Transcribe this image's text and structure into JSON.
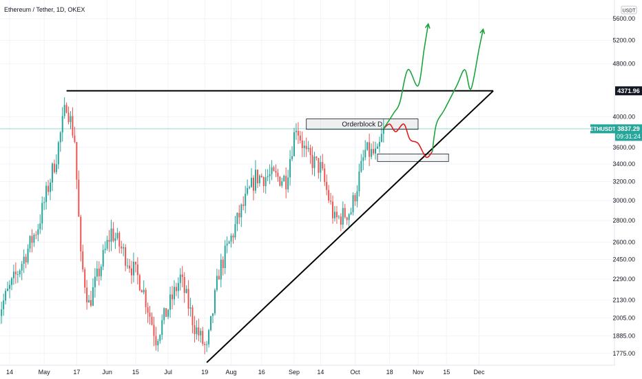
{
  "header": {
    "title": "Ethereum / Tether, 1D, OKEX"
  },
  "price_scale": {
    "currency": "USDT",
    "tick_labels": [
      "5600.00",
      "5200.00",
      "4800.00",
      "4000.00",
      "3600.00",
      "3400.00",
      "3200.00",
      "3000.00",
      "2800.00",
      "2600.00",
      "2450.00",
      "2290.00",
      "2130.00",
      "2005.00",
      "1885.00",
      "1775.00"
    ]
  },
  "time_scale": {
    "tick_labels": [
      "14",
      "May",
      "17",
      "Jun",
      "15",
      "Jul",
      "19",
      "Aug",
      "16",
      "Sep",
      "14",
      "Oct",
      "18",
      "Nov",
      "15",
      "Dec"
    ]
  },
  "price_badges": {
    "resistance": "4371.96",
    "symbol": "ETHUSDT",
    "last_price": "3837.29",
    "countdown": "09:31:24"
  },
  "annotations": {
    "orderblock_label": "Orderblock D"
  },
  "colors": {
    "up": "#26a69a",
    "down": "#ef5350",
    "bullish_path": "#1aa33a",
    "bearish_path": "#e01b1b",
    "trendline": "#000000",
    "price_line": "#26a69a"
  },
  "chart_data": {
    "type": "candlestick",
    "symbol": "ETHUSDT",
    "exchange": "OKEX",
    "interval": "1D",
    "scale": "log",
    "ylim": [
      1700,
      5750
    ],
    "key_levels": {
      "resistance": 4371.96,
      "last": 3837.29
    },
    "orderblock_d": {
      "low": 3830,
      "high": 3970,
      "start": "2021-09-07",
      "end": "2021-11-01"
    },
    "demand_zone": {
      "low": 3430,
      "high": 3520,
      "start": "2021-10-12",
      "end": "2021-11-16"
    },
    "ascending_trendline": [
      {
        "date": "2021-07-20",
        "price": 1720
      },
      {
        "date": "2021-12-08",
        "price": 4371.96
      }
    ],
    "horizontal_resistance": [
      {
        "date": "2021-05-12",
        "price": 4371.96
      },
      {
        "date": "2021-12-08",
        "price": 4371.96
      }
    ],
    "waypoints": [
      {
        "date": "2021-04-08",
        "price": 2030
      },
      {
        "date": "2021-04-18",
        "price": 2350
      },
      {
        "date": "2021-04-28",
        "price": 2750
      },
      {
        "date": "2021-05-07",
        "price": 3500
      },
      {
        "date": "2021-05-12",
        "price": 4200
      },
      {
        "date": "2021-05-16",
        "price": 3700
      },
      {
        "date": "2021-05-19",
        "price": 2450
      },
      {
        "date": "2021-05-23",
        "price": 2100
      },
      {
        "date": "2021-06-03",
        "price": 2700
      },
      {
        "date": "2021-06-18",
        "price": 2250
      },
      {
        "date": "2021-06-25",
        "price": 1870
      },
      {
        "date": "2021-07-07",
        "price": 2300
      },
      {
        "date": "2021-07-14",
        "price": 1950
      },
      {
        "date": "2021-07-20",
        "price": 1790
      },
      {
        "date": "2021-07-26",
        "price": 2350
      },
      {
        "date": "2021-08-05",
        "price": 2850
      },
      {
        "date": "2021-08-13",
        "price": 3250
      },
      {
        "date": "2021-08-20",
        "price": 3260
      },
      {
        "date": "2021-08-28",
        "price": 3230
      },
      {
        "date": "2021-09-02",
        "price": 3900
      },
      {
        "date": "2021-09-07",
        "price": 3500
      },
      {
        "date": "2021-09-14",
        "price": 3350
      },
      {
        "date": "2021-09-21",
        "price": 2800
      },
      {
        "date": "2021-09-29",
        "price": 2900
      },
      {
        "date": "2021-10-06",
        "price": 3550
      },
      {
        "date": "2021-10-12",
        "price": 3500
      },
      {
        "date": "2021-10-15",
        "price": 3837.29
      }
    ],
    "projection_bearish": [
      {
        "date": "2021-10-15",
        "price": 3837.29
      },
      {
        "date": "2021-10-18",
        "price": 3900
      },
      {
        "date": "2021-10-21",
        "price": 3800
      },
      {
        "date": "2021-10-25",
        "price": 3900
      },
      {
        "date": "2021-10-28",
        "price": 3700
      },
      {
        "date": "2021-11-01",
        "price": 3650
      },
      {
        "date": "2021-11-05",
        "price": 3480
      },
      {
        "date": "2021-11-08",
        "price": 3550
      }
    ],
    "projection_bullish_1": [
      {
        "date": "2021-10-15",
        "price": 3837.29
      },
      {
        "date": "2021-10-20",
        "price": 4050
      },
      {
        "date": "2021-10-23",
        "price": 4200
      },
      {
        "date": "2021-10-27",
        "price": 4700
      },
      {
        "date": "2021-11-01",
        "price": 4450
      },
      {
        "date": "2021-11-04",
        "price": 5050
      },
      {
        "date": "2021-11-06",
        "price": 5500
      }
    ],
    "projection_bullish_2": [
      {
        "date": "2021-11-08",
        "price": 3550
      },
      {
        "date": "2021-11-10",
        "price": 3900
      },
      {
        "date": "2021-11-14",
        "price": 4100
      },
      {
        "date": "2021-11-20",
        "price": 4450
      },
      {
        "date": "2021-11-24",
        "price": 4700
      },
      {
        "date": "2021-11-27",
        "price": 4400
      },
      {
        "date": "2021-12-01",
        "price": 5050
      },
      {
        "date": "2021-12-03",
        "price": 5400
      }
    ]
  }
}
